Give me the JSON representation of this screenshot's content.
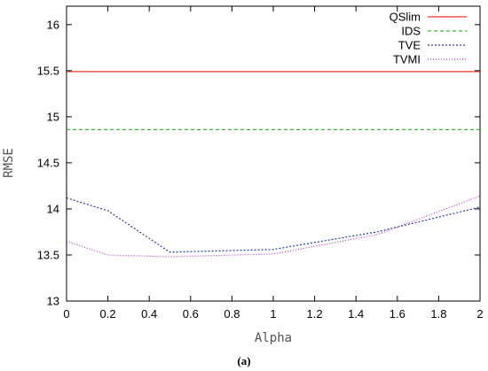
{
  "chart_data": {
    "type": "line",
    "xlabel": "Alpha",
    "ylabel": "RMSE",
    "caption": "(a)",
    "xlim": [
      0,
      2
    ],
    "ylim": [
      13,
      16.2
    ],
    "x_ticks": [
      "0",
      "0.2",
      "0.4",
      "0.6",
      "0.8",
      "1",
      "1.2",
      "1.4",
      "1.6",
      "1.8",
      "2"
    ],
    "y_ticks": [
      "13",
      "13.5",
      "14",
      "14.5",
      "15",
      "15.5",
      "16"
    ],
    "grid": false,
    "legend_position": "top-right",
    "series": [
      {
        "name": "QSlim",
        "color": "#e8372c",
        "dash": "solid",
        "x": [
          0,
          2
        ],
        "y": [
          15.49,
          15.49
        ]
      },
      {
        "name": "IDS",
        "color": "#3cb43c",
        "dash": "dashed",
        "x": [
          0,
          2
        ],
        "y": [
          14.86,
          14.86
        ]
      },
      {
        "name": "TVE",
        "color": "#2a3aa0",
        "dash": "dotted",
        "x": [
          0,
          0.2,
          0.5,
          1.0,
          1.5,
          2.0
        ],
        "y": [
          14.12,
          13.98,
          13.53,
          13.56,
          13.75,
          14.02
        ]
      },
      {
        "name": "TVMI",
        "color": "#b03ac8",
        "dash": "finedotted",
        "x": [
          0,
          0.2,
          0.5,
          1.0,
          1.5,
          2.0
        ],
        "y": [
          13.65,
          13.5,
          13.48,
          13.51,
          13.72,
          14.14
        ]
      }
    ]
  }
}
